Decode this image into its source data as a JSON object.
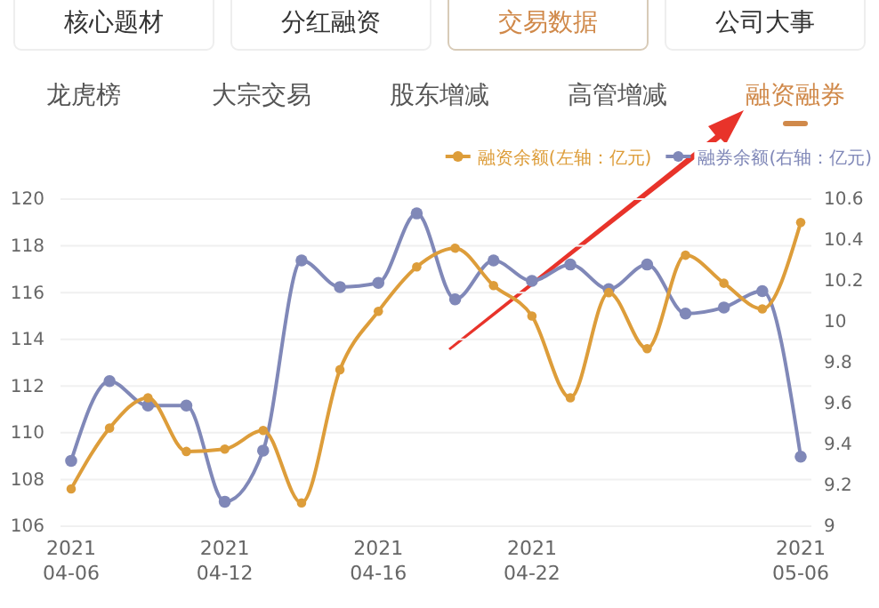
{
  "chart_data": {
    "type": "line",
    "annotations": [
      "核心题材",
      "分红融资",
      "交易数据",
      "公司大事",
      "龙虎榜",
      "大宗交易",
      "股东增减",
      "高管增减",
      "融资融券"
    ],
    "categories": [
      "2021\n04-06",
      null,
      null,
      null,
      "2021\n04-12",
      null,
      null,
      null,
      "2021\n04-16",
      null,
      null,
      null,
      "2021\n04-22",
      null,
      null,
      null,
      null,
      null,
      null,
      "2021\n05-06"
    ],
    "series": [
      {
        "name": "融资余额(左轴：亿元)",
        "color": "#dd9d3a",
        "values": [
          107.6,
          110.2,
          111.5,
          109.2,
          109.3,
          110.1,
          107.0,
          112.7,
          115.2,
          117.1,
          117.9,
          116.3,
          115.0,
          111.5,
          116.0,
          113.6,
          117.6,
          116.4,
          115.3,
          119.0
        ]
      },
      {
        "name": "融券余额(右轴：亿元)",
        "color": "#8088b8",
        "axis": "y2",
        "values": [
          9.32,
          9.71,
          9.59,
          9.59,
          9.12,
          9.37,
          10.3,
          10.17,
          10.19,
          10.53,
          10.11,
          10.3,
          10.2,
          10.28,
          10.16,
          10.28,
          10.04,
          10.07,
          10.15,
          9.34
        ]
      }
    ],
    "ylim": [
      106,
      120
    ],
    "yticks": [
      106,
      108,
      110,
      112,
      114,
      116,
      118,
      120
    ],
    "y2lim": [
      9.0,
      10.6
    ],
    "y2ticks": [
      9.0,
      9.2,
      9.4,
      9.6,
      9.8,
      10.0,
      10.2,
      10.4,
      10.6
    ],
    "grid": "y",
    "legend": "top right",
    "marker": "circle",
    "line_style": "solid"
  }
}
